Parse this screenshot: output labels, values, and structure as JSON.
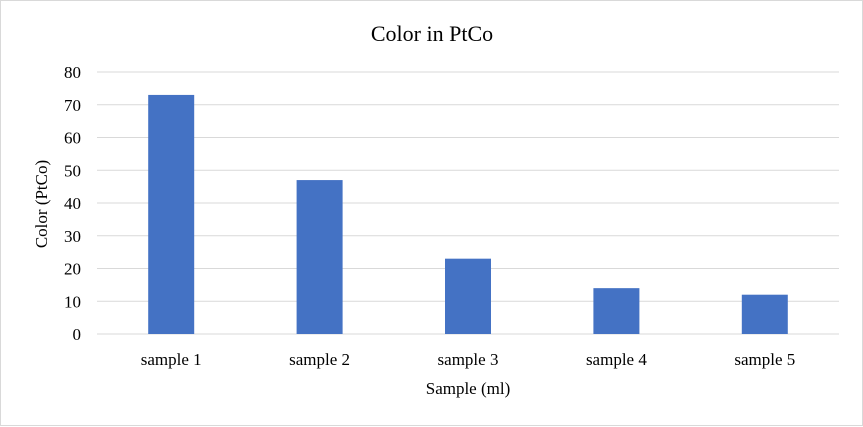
{
  "chart_data": {
    "type": "bar",
    "title": "Color in PtCo",
    "xlabel": "Sample (ml)",
    "ylabel": "Color (PtCo)",
    "categories": [
      "sample 1",
      "sample 2",
      "sample 3",
      "sample 4",
      "sample 5"
    ],
    "values": [
      73,
      47,
      23,
      14,
      12
    ],
    "ylim": [
      0,
      80
    ],
    "yticks": [
      0,
      10,
      20,
      30,
      40,
      50,
      60,
      70,
      80
    ],
    "grid": true,
    "legend": "none",
    "bar_color": "#4472c4"
  }
}
